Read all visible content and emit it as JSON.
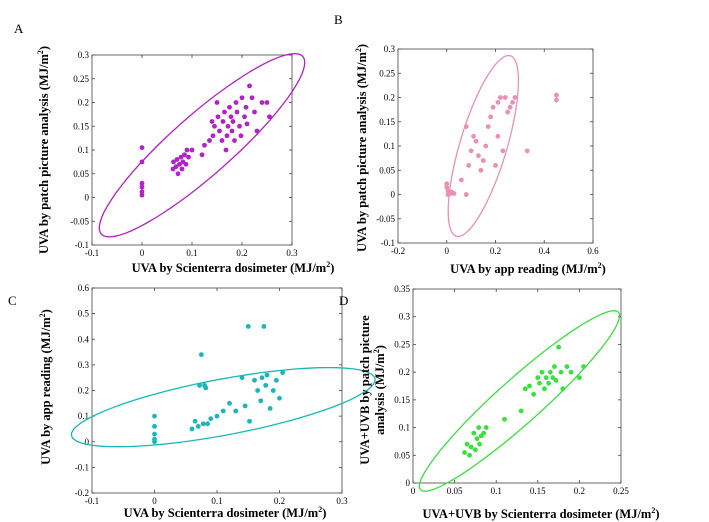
{
  "chart_data": [
    {
      "type": "scatter",
      "panel": "A",
      "xlabel": "UVA by Scienterra dosimeter (MJ/m2)",
      "ylabel": "UVA by patch picture analysis (MJ/m2)",
      "xlim": [
        -0.1,
        0.3
      ],
      "ylim": [
        -0.1,
        0.3
      ],
      "xticks": [
        "-0.1",
        "0",
        "0.1",
        "0.2",
        "0.3"
      ],
      "yticks": [
        "-0.1",
        "-0.05",
        "0",
        "0.05",
        "0.1",
        "0.15",
        "0.2",
        "0.25",
        "0.3"
      ],
      "color": "#b321c7",
      "ellipse": {
        "cx": 0.12,
        "cy": 0.11,
        "rx": 0.275,
        "ry": 0.062,
        "angle_deg": 43
      },
      "points": [
        [
          0,
          0.105
        ],
        [
          0,
          0.075
        ],
        [
          0,
          0.03
        ],
        [
          0,
          0.022
        ],
        [
          0,
          0.012
        ],
        [
          0,
          0.005
        ],
        [
          0.062,
          0.06
        ],
        [
          0.063,
          0.075
        ],
        [
          0.068,
          0.065
        ],
        [
          0.07,
          0.08
        ],
        [
          0.072,
          0.05
        ],
        [
          0.075,
          0.07
        ],
        [
          0.078,
          0.085
        ],
        [
          0.08,
          0.06
        ],
        [
          0.082,
          0.075
        ],
        [
          0.085,
          0.09
        ],
        [
          0.088,
          0.07
        ],
        [
          0.09,
          0.1
        ],
        [
          0.093,
          0.085
        ],
        [
          0.1,
          0.1
        ],
        [
          0.12,
          0.09
        ],
        [
          0.125,
          0.11
        ],
        [
          0.135,
          0.12
        ],
        [
          0.14,
          0.16
        ],
        [
          0.142,
          0.13
        ],
        [
          0.145,
          0.15
        ],
        [
          0.15,
          0.2
        ],
        [
          0.152,
          0.17
        ],
        [
          0.155,
          0.14
        ],
        [
          0.16,
          0.12
        ],
        [
          0.162,
          0.16
        ],
        [
          0.165,
          0.18
        ],
        [
          0.168,
          0.1
        ],
        [
          0.17,
          0.13
        ],
        [
          0.172,
          0.15
        ],
        [
          0.175,
          0.19
        ],
        [
          0.178,
          0.17
        ],
        [
          0.18,
          0.14
        ],
        [
          0.182,
          0.16
        ],
        [
          0.185,
          0.12
        ],
        [
          0.188,
          0.2
        ],
        [
          0.19,
          0.18
        ],
        [
          0.195,
          0.15
        ],
        [
          0.198,
          0.13
        ],
        [
          0.2,
          0.21
        ],
        [
          0.205,
          0.17
        ],
        [
          0.208,
          0.19
        ],
        [
          0.21,
          0.155
        ],
        [
          0.215,
          0.235
        ],
        [
          0.22,
          0.21
        ],
        [
          0.225,
          0.18
        ],
        [
          0.23,
          0.14
        ],
        [
          0.24,
          0.2
        ],
        [
          0.25,
          0.2
        ],
        [
          0.255,
          0.17
        ]
      ]
    },
    {
      "type": "scatter",
      "panel": "B",
      "xlabel": "UVA by app reading (MJ/m2)",
      "ylabel": "UVA by patch picture analysis (MJ/m2)",
      "xlim": [
        -0.2,
        0.6
      ],
      "ylim": [
        -0.1,
        0.3
      ],
      "xticks": [
        "-0.2",
        "0",
        "0.2",
        "0.4",
        "0.6"
      ],
      "yticks": [
        "-0.1",
        "-0.05",
        "0",
        "0.05",
        "0.1",
        "0.15",
        "0.2",
        "0.25",
        "0.3"
      ],
      "color": "#ec8fb4",
      "ellipse": {
        "cx": 0.15,
        "cy": 0.1,
        "rx": 0.22,
        "ry": 0.085,
        "angle_deg": 55
      },
      "points": [
        [
          0,
          0.022
        ],
        [
          0,
          0.015
        ],
        [
          0.005,
          0.008
        ],
        [
          0.01,
          0.004
        ],
        [
          0.015,
          0.002
        ],
        [
          0.02,
          0.005
        ],
        [
          0.005,
          0.0
        ],
        [
          0.03,
          0.002
        ],
        [
          0.06,
          0.03
        ],
        [
          0.08,
          0.14
        ],
        [
          0.08,
          0.0
        ],
        [
          0.09,
          0.06
        ],
        [
          0.1,
          0.09
        ],
        [
          0.11,
          0.12
        ],
        [
          0.12,
          0.11
        ],
        [
          0.13,
          0.08
        ],
        [
          0.14,
          0.05
        ],
        [
          0.15,
          0.07
        ],
        [
          0.16,
          0.1
        ],
        [
          0.17,
          0.14
        ],
        [
          0.18,
          0.16
        ],
        [
          0.19,
          0.18
        ],
        [
          0.2,
          0.06
        ],
        [
          0.21,
          0.12
        ],
        [
          0.21,
          0.19
        ],
        [
          0.22,
          0.2
        ],
        [
          0.23,
          0.09
        ],
        [
          0.24,
          0.2
        ],
        [
          0.25,
          0.17
        ],
        [
          0.26,
          0.18
        ],
        [
          0.27,
          0.19
        ],
        [
          0.28,
          0.2
        ],
        [
          0.33,
          0.09
        ],
        [
          0.45,
          0.205
        ],
        [
          0.45,
          0.195
        ]
      ]
    },
    {
      "type": "scatter",
      "panel": "C",
      "xlabel": "UVA by Scienterra dosimeter (MJ/m2)",
      "ylabel": "UVA by app reading (MJ/m2)",
      "xlim": [
        -0.1,
        0.3
      ],
      "ylim": [
        -0.2,
        0.6
      ],
      "xticks": [
        "-0.1",
        "0",
        "0.1",
        "0.2",
        "0.3"
      ],
      "yticks": [
        "-0.2",
        "-0.1",
        "0",
        "0.1",
        "0.2",
        "0.3",
        "0.4",
        "0.5",
        "0.6"
      ],
      "color": "#19b8b8",
      "ellipse": {
        "cx": 0.11,
        "cy": 0.135,
        "rx": 0.27,
        "ry": 0.1,
        "angle_deg": 28
      },
      "points": [
        [
          0,
          0.1
        ],
        [
          0,
          0.06
        ],
        [
          0,
          0.03
        ],
        [
          0,
          0.01
        ],
        [
          0,
          0.0
        ],
        [
          0.06,
          0.05
        ],
        [
          0.065,
          0.08
        ],
        [
          0.07,
          0.06
        ],
        [
          0.072,
          0.22
        ],
        [
          0.075,
          0.34
        ],
        [
          0.078,
          0.07
        ],
        [
          0.08,
          0.22
        ],
        [
          0.082,
          0.21
        ],
        [
          0.085,
          0.07
        ],
        [
          0.09,
          0.09
        ],
        [
          0.1,
          0.1
        ],
        [
          0.11,
          0.12
        ],
        [
          0.12,
          0.15
        ],
        [
          0.13,
          0.12
        ],
        [
          0.14,
          0.25
        ],
        [
          0.145,
          0.14
        ],
        [
          0.15,
          0.45
        ],
        [
          0.152,
          0.08
        ],
        [
          0.16,
          0.24
        ],
        [
          0.165,
          0.2
        ],
        [
          0.17,
          0.16
        ],
        [
          0.172,
          0.25
        ],
        [
          0.175,
          0.45
        ],
        [
          0.178,
          0.22
        ],
        [
          0.18,
          0.26
        ],
        [
          0.185,
          0.13
        ],
        [
          0.19,
          0.2
        ],
        [
          0.195,
          0.24
        ],
        [
          0.2,
          0.17
        ],
        [
          0.205,
          0.27
        ]
      ]
    },
    {
      "type": "scatter",
      "panel": "D",
      "xlabel": "UVA+UVB by Scienterra dosimeter (MJ/m2)",
      "ylabel": "UVA+UVB by patch picture analysis (MJ/m2)",
      "xlim": [
        0,
        0.25
      ],
      "ylim": [
        0,
        0.35
      ],
      "xticks": [
        "0",
        "0.05",
        "0.1",
        "0.15",
        "0.2",
        "0.25"
      ],
      "yticks": [
        "0",
        "0.05",
        "0.1",
        "0.15",
        "0.2",
        "0.25",
        "0.3",
        "0.35"
      ],
      "color": "#37e23c",
      "ellipse": {
        "cx": 0.128,
        "cy": 0.148,
        "rx": 0.2,
        "ry": 0.032,
        "angle_deg": 54
      },
      "points": [
        [
          0.062,
          0.055
        ],
        [
          0.065,
          0.07
        ],
        [
          0.068,
          0.05
        ],
        [
          0.07,
          0.065
        ],
        [
          0.073,
          0.09
        ],
        [
          0.075,
          0.06
        ],
        [
          0.077,
          0.08
        ],
        [
          0.079,
          0.1
        ],
        [
          0.08,
          0.07
        ],
        [
          0.082,
          0.085
        ],
        [
          0.085,
          0.09
        ],
        [
          0.088,
          0.1
        ],
        [
          0.11,
          0.115
        ],
        [
          0.13,
          0.13
        ],
        [
          0.135,
          0.17
        ],
        [
          0.14,
          0.175
        ],
        [
          0.145,
          0.16
        ],
        [
          0.15,
          0.19
        ],
        [
          0.152,
          0.18
        ],
        [
          0.155,
          0.2
        ],
        [
          0.158,
          0.17
        ],
        [
          0.16,
          0.19
        ],
        [
          0.163,
          0.18
        ],
        [
          0.165,
          0.2
        ],
        [
          0.168,
          0.19
        ],
        [
          0.17,
          0.21
        ],
        [
          0.172,
          0.185
        ],
        [
          0.175,
          0.245
        ],
        [
          0.178,
          0.2
        ],
        [
          0.18,
          0.17
        ],
        [
          0.185,
          0.21
        ],
        [
          0.19,
          0.2
        ],
        [
          0.2,
          0.19
        ],
        [
          0.205,
          0.21
        ]
      ]
    }
  ]
}
